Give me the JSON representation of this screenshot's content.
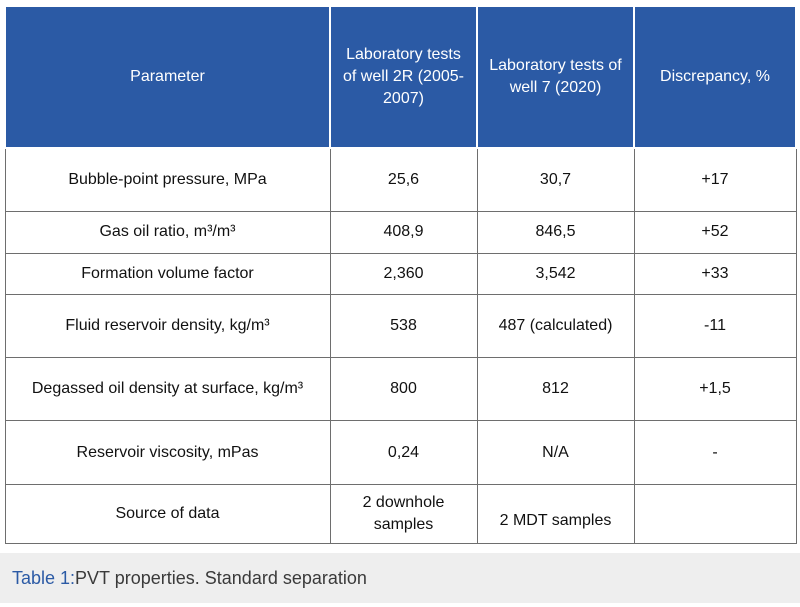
{
  "table": {
    "headers": [
      "Parameter",
      "Laboratory tests of well 2R (2005-2007)",
      "Laboratory tests of well 7 (2020)",
      "Discrepancy, %"
    ],
    "rows": [
      [
        "Bubble-point pressure, MPa",
        "25,6",
        "30,7",
        "+17"
      ],
      [
        "Gas oil ratio, m³/m³",
        "408,9",
        "846,5",
        "+52"
      ],
      [
        "Formation volume factor",
        "2,360",
        "3,542",
        "+33"
      ],
      [
        "Fluid reservoir density, kg/m³",
        "538",
        "487 (calculated)",
        "-11"
      ],
      [
        "Degassed oil density at surface, kg/m³",
        "800",
        "812",
        "+1,5"
      ],
      [
        "Reservoir viscosity, mPas",
        "0,24",
        "N/A",
        "-"
      ],
      [
        "Source of data",
        "2 downhole samples",
        "2 MDT samples",
        ""
      ]
    ]
  },
  "caption": {
    "label": "Table 1:",
    "text": " PVT properties. Standard separation"
  },
  "colors": {
    "header_bg": "#2b5aa5",
    "caption_bg": "#eeeeee",
    "caption_label": "#2b5aa5"
  }
}
